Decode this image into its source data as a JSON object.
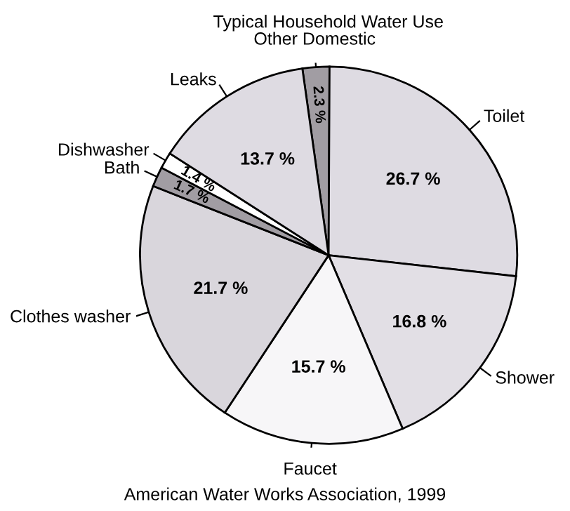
{
  "chart_data": {
    "type": "pie",
    "title": "Typical Household Water Use",
    "categories": [
      "Other Domestic",
      "Toilet",
      "Shower",
      "Faucet",
      "Clothes washer",
      "Bath",
      "Dishwasher",
      "Leaks"
    ],
    "values": [
      2.3,
      26.7,
      16.8,
      15.7,
      21.7,
      1.7,
      1.4,
      13.7
    ],
    "colors": [
      "#a19da3",
      "#dedbe2",
      "#e2dfe5",
      "#f7f6f8",
      "#d9d6dc",
      "#a19da3",
      "#ffffff",
      "#dedbe2"
    ],
    "value_labels": [
      "2.3 %",
      "26.7 %",
      "16.8 %",
      "15.7 %",
      "21.7 %",
      "1.7 %",
      "1.4 %",
      "13.7 %"
    ],
    "annotations": [
      "American Water Works Association, 1999"
    ]
  }
}
